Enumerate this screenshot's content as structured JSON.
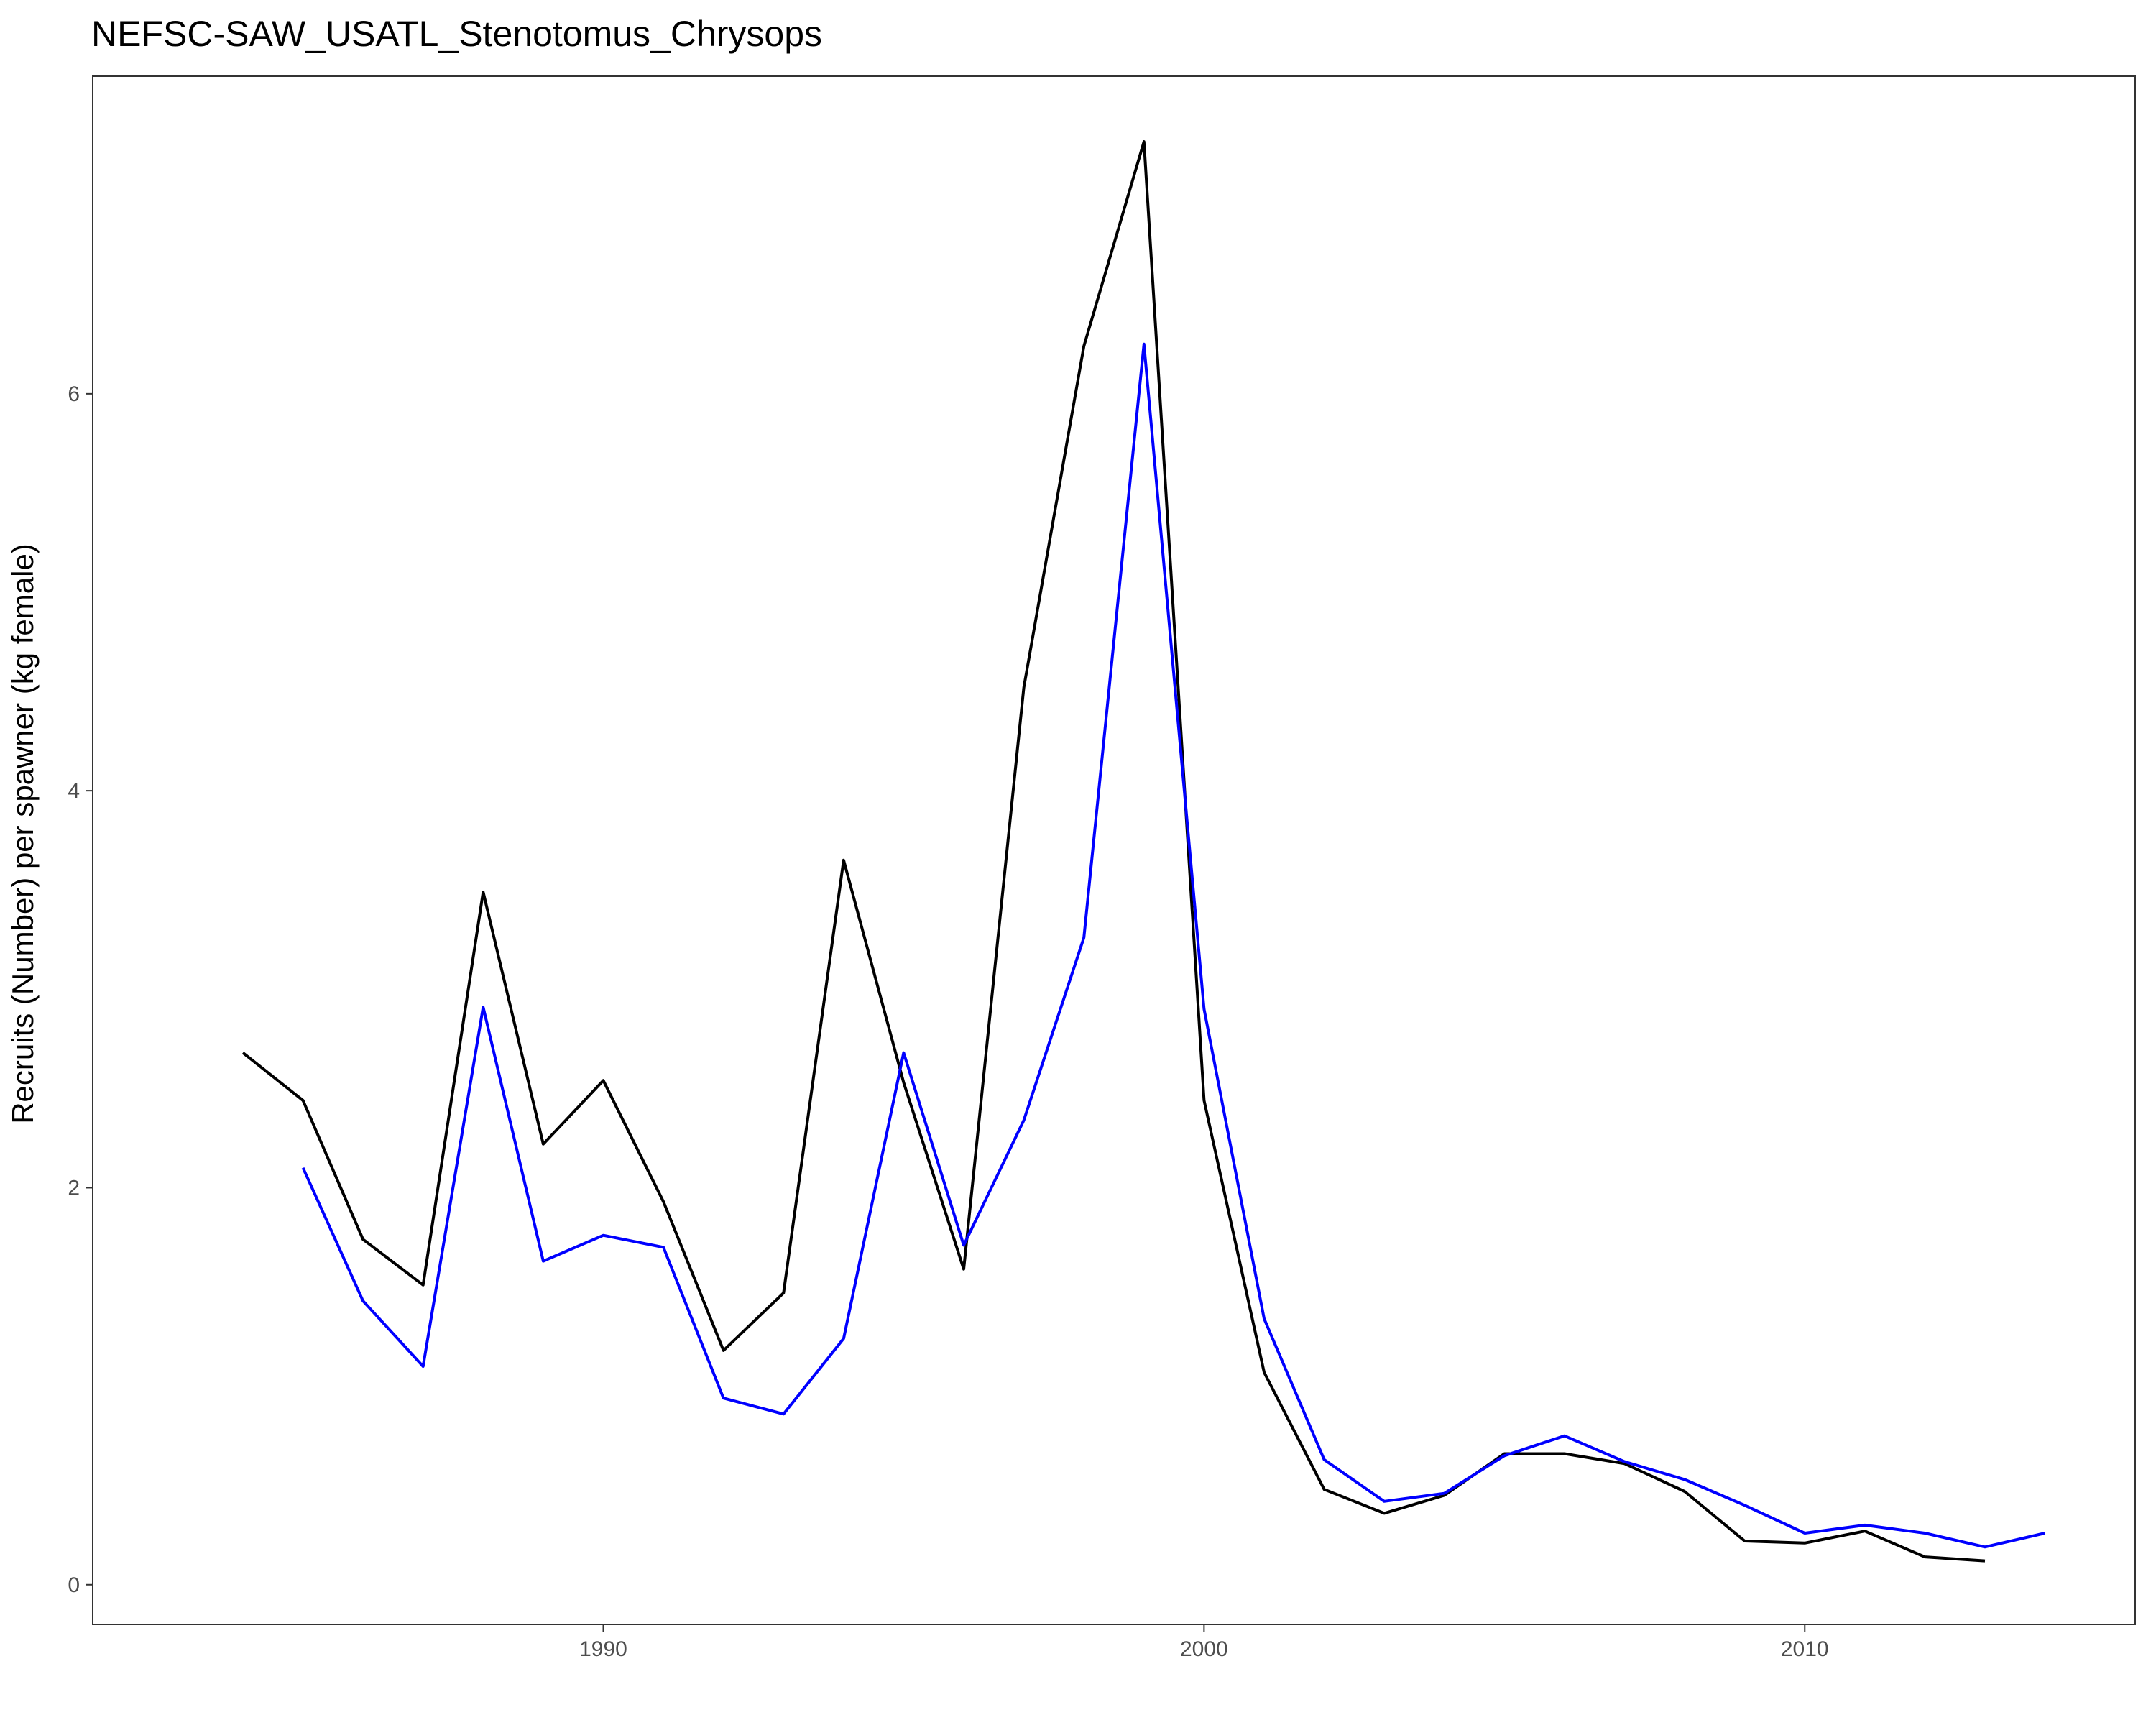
{
  "chart_data": {
    "type": "line",
    "title": "NEFSC-SAW_USATL_Stenotomus_Chrysops",
    "xlabel": "",
    "ylabel": "Recruits (Number) per spawner (kg female)",
    "xlim": [
      1981.5,
      2015.5
    ],
    "ylim": [
      -0.2,
      7.6
    ],
    "x_ticks": [
      1990,
      2000,
      2010
    ],
    "x_tick_labels": [
      "1990",
      "2000",
      "2010"
    ],
    "y_ticks": [
      0,
      2,
      4,
      6
    ],
    "y_tick_labels": [
      "0",
      "2",
      "4",
      "6"
    ],
    "grid": false,
    "legend": "none",
    "series": [
      {
        "color": "#000000",
        "x": [
          1984,
          1985,
          1986,
          1987,
          1988,
          1989,
          1990,
          1991,
          1992,
          1993,
          1994,
          1995,
          1996,
          1997,
          1998,
          1999,
          2000,
          2001,
          2002,
          2003,
          2004,
          2005,
          2006,
          2007,
          2008,
          2009,
          2010,
          2011,
          2012,
          2013
        ],
        "values": [
          2.68,
          2.44,
          1.74,
          1.51,
          3.49,
          2.22,
          2.54,
          1.93,
          1.18,
          1.47,
          3.65,
          2.53,
          1.59,
          4.52,
          6.24,
          7.27,
          2.44,
          1.07,
          0.48,
          0.36,
          0.45,
          0.66,
          0.66,
          0.61,
          0.47,
          0.22,
          0.21,
          0.27,
          0.14,
          0.12
        ]
      },
      {
        "color": "#0000ff",
        "x": [
          1985,
          1986,
          1987,
          1988,
          1989,
          1990,
          1991,
          1992,
          1993,
          1994,
          1995,
          1996,
          1997,
          1998,
          1999,
          2000,
          2001,
          2002,
          2003,
          2004,
          2005,
          2006,
          2007,
          2008,
          2009,
          2010,
          2011,
          2012,
          2013,
          2014
        ],
        "values": [
          2.1,
          1.43,
          1.1,
          2.91,
          1.63,
          1.76,
          1.7,
          0.94,
          0.86,
          1.24,
          2.68,
          1.71,
          2.34,
          3.26,
          6.25,
          2.9,
          1.34,
          0.63,
          0.42,
          0.46,
          0.65,
          0.75,
          0.62,
          0.53,
          0.4,
          0.26,
          0.3,
          0.26,
          0.19,
          0.26
        ]
      }
    ]
  }
}
